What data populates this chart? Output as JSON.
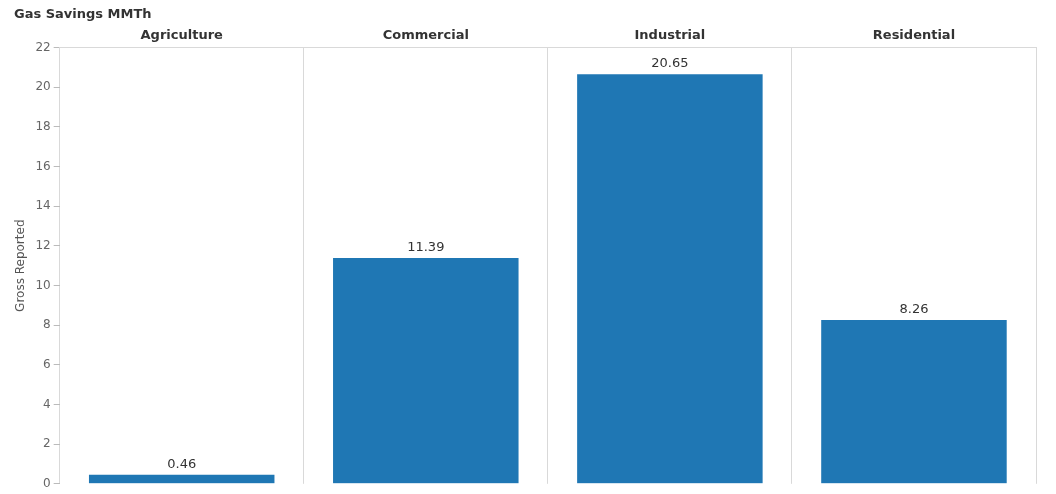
{
  "chart_data": {
    "type": "bar",
    "title": "Gas Savings MMTh",
    "ylabel": "Gross Reported",
    "categories": [
      "Agriculture",
      "Commercial",
      "Industrial",
      "Residential"
    ],
    "values": [
      0.46,
      11.39,
      20.65,
      8.26
    ],
    "color": "#1f77b4",
    "ylim": [
      0,
      22
    ],
    "yticks": [
      0,
      2,
      4,
      6,
      8,
      10,
      12,
      14,
      16,
      18,
      20,
      22
    ],
    "grid": "x",
    "data_labels": true,
    "legend": false
  }
}
